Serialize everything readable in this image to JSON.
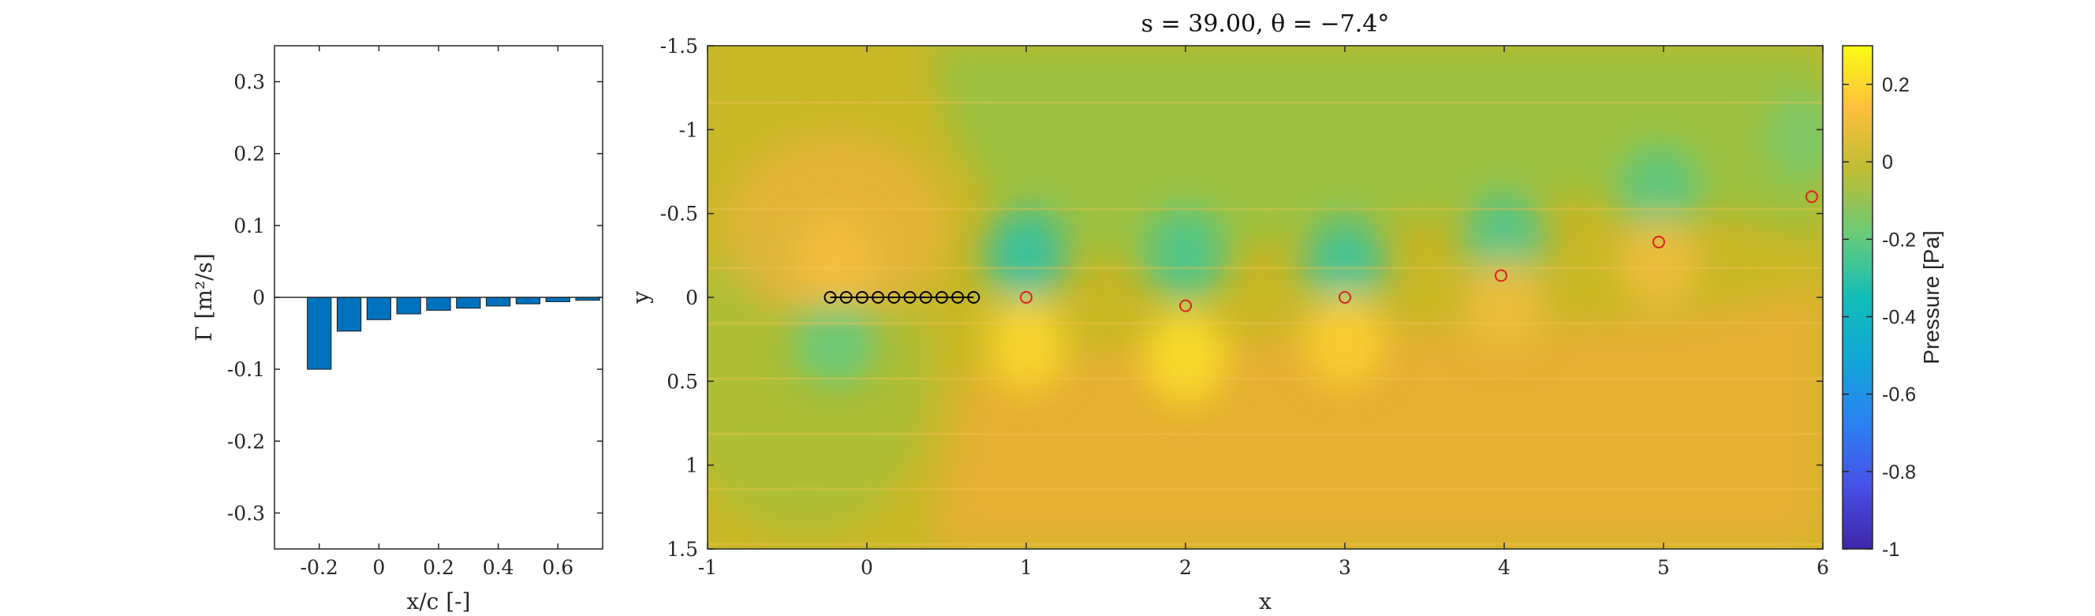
{
  "chart_data": [
    {
      "type": "bar",
      "x": [
        -0.2,
        -0.1,
        0.0,
        0.1,
        0.2,
        0.3,
        0.4,
        0.5,
        0.6,
        0.7
      ],
      "values": [
        -0.1,
        -0.047,
        -0.031,
        -0.023,
        -0.018,
        -0.015,
        -0.012,
        -0.009,
        -0.006,
        -0.004
      ],
      "xlabel": "x/c [-]",
      "ylabel": "Γ [m²/s]",
      "xlim": [
        -0.35,
        0.75
      ],
      "ylim": [
        -0.35,
        0.35
      ],
      "xticks": [
        -0.2,
        0,
        0.2,
        0.4,
        0.6
      ],
      "xtick_labels": [
        "-0.2",
        "0",
        "0.2",
        "0.4",
        "0.6"
      ],
      "yticks": [
        0.3,
        0.2,
        0.1,
        0,
        -0.1,
        -0.2,
        -0.3
      ],
      "ytick_labels": [
        "0.3",
        "0.2",
        "0.1",
        "0",
        "-0.1",
        "-0.2",
        "-0.3"
      ],
      "bar_color": "#0072BD",
      "grid": false
    },
    {
      "type": "heatmap",
      "title": "s = 39.00, θ = −7.4°",
      "xlabel": "x",
      "ylabel": "y",
      "xlim": [
        -1,
        6
      ],
      "ylim": [
        -1.5,
        1.5
      ],
      "y_axis_reversed": true,
      "xticks": [
        -1,
        0,
        1,
        2,
        3,
        4,
        5,
        6
      ],
      "xtick_labels": [
        "-1",
        "0",
        "1",
        "2",
        "3",
        "4",
        "5",
        "6"
      ],
      "yticks": [
        -1.5,
        -1,
        -0.5,
        0,
        0.5,
        1,
        1.5
      ],
      "ytick_labels": [
        "-1.5",
        "-1",
        "-0.5",
        "0",
        "0.5",
        "1",
        "1.5"
      ],
      "colorbar": {
        "label": "Pressure [Pa]",
        "range": [
          -1,
          0.3
        ],
        "ticks": [
          0.2,
          0,
          -0.2,
          -0.4,
          -0.6,
          -0.8,
          -1
        ],
        "tick_labels": [
          "0.2",
          "0",
          "-0.2",
          "-0.4",
          "-0.6",
          "-0.8",
          "-1"
        ],
        "colormap": "parula"
      },
      "plate_points": {
        "x": [
          -0.23,
          -0.13,
          -0.03,
          0.07,
          0.17,
          0.27,
          0.37,
          0.47,
          0.57,
          0.67
        ],
        "y": [
          0,
          0,
          0,
          0,
          0,
          0,
          0,
          0,
          0,
          0
        ],
        "color": "#000000"
      },
      "wake_vortices": {
        "x": [
          1.0,
          2.0,
          3.0,
          3.98,
          4.97,
          5.93
        ],
        "y": [
          0.0,
          0.05,
          0.0,
          -0.13,
          -0.33,
          -0.6
        ],
        "color": "#e02020"
      },
      "field_features": [
        {
          "x": -0.2,
          "y": 0.25,
          "p": -0.2
        },
        {
          "x": -0.2,
          "y": -0.22,
          "p": 0.12
        },
        {
          "x": 1.0,
          "y": -0.25,
          "p": -0.3
        },
        {
          "x": 1.0,
          "y": 0.28,
          "p": 0.2
        },
        {
          "x": 2.0,
          "y": -0.25,
          "p": -0.25
        },
        {
          "x": 2.0,
          "y": 0.35,
          "p": 0.22
        },
        {
          "x": 3.0,
          "y": -0.2,
          "p": -0.28
        },
        {
          "x": 3.0,
          "y": 0.25,
          "p": 0.18
        },
        {
          "x": 4.0,
          "y": -0.35,
          "p": -0.25
        },
        {
          "x": 4.0,
          "y": 0.05,
          "p": 0.1
        },
        {
          "x": 4.97,
          "y": -0.62,
          "p": -0.22
        },
        {
          "x": 4.97,
          "y": -0.2,
          "p": 0.1
        },
        {
          "x": 5.9,
          "y": -0.95,
          "p": -0.15
        }
      ]
    }
  ]
}
